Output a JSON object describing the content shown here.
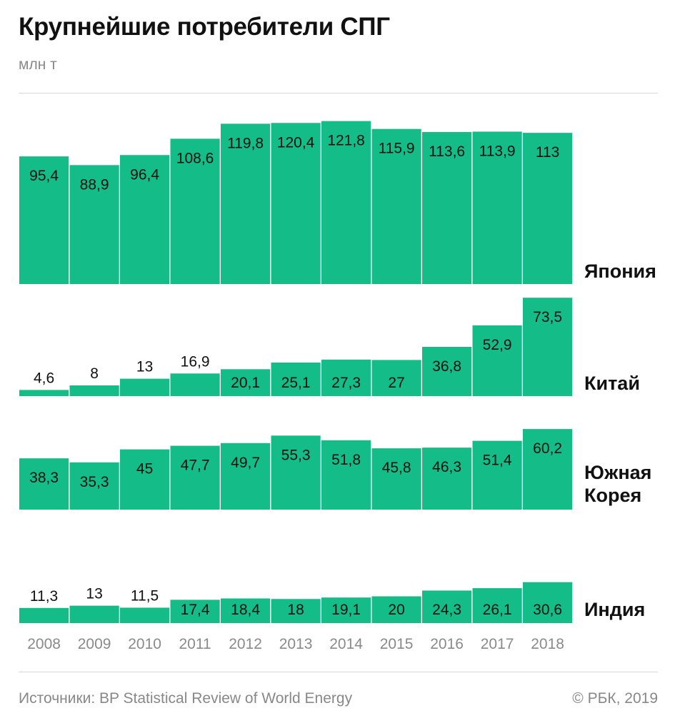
{
  "title": "Крупнейшие потребители СПГ",
  "unit": "млн т",
  "source": "Источники: BP Statistical Review of World Energy",
  "copyright": "© РБК, 2019",
  "colors": {
    "bar": "#14bd87",
    "text": "#111111",
    "axis": "#8a8a8a"
  },
  "chart_data": {
    "type": "bar",
    "categories": [
      "2008",
      "2009",
      "2010",
      "2011",
      "2012",
      "2013",
      "2014",
      "2015",
      "2016",
      "2017",
      "2018"
    ],
    "series": [
      {
        "name": "Япония",
        "values": [
          95.4,
          88.9,
          96.4,
          108.6,
          119.8,
          120.4,
          121.8,
          115.9,
          113.6,
          113.9,
          113
        ],
        "labels": [
          "95,4",
          "88,9",
          "96,4",
          "108,6",
          "119,8",
          "120,4",
          "121,8",
          "115,9",
          "113,6",
          "113,9",
          "113"
        ]
      },
      {
        "name": "Китай",
        "values": [
          4.6,
          8,
          13,
          16.9,
          20.1,
          25.1,
          27.3,
          27,
          36.8,
          52.9,
          73.5
        ],
        "labels": [
          "4,6",
          "8",
          "13",
          "16,9",
          "20,1",
          "25,1",
          "27,3",
          "27",
          "36,8",
          "52,9",
          "73,5"
        ]
      },
      {
        "name": "Южная Корея",
        "values": [
          38.3,
          35.3,
          45,
          47.7,
          49.7,
          55.3,
          51.8,
          45.8,
          46.3,
          51.4,
          60.2
        ],
        "labels": [
          "38,3",
          "35,3",
          "45",
          "47,7",
          "49,7",
          "55,3",
          "51,8",
          "45,8",
          "46,3",
          "51,4",
          "60,2"
        ]
      },
      {
        "name": "Индия",
        "values": [
          11.3,
          13,
          11.5,
          17.4,
          18.4,
          18,
          19.1,
          20,
          24.3,
          26.1,
          30.6
        ],
        "labels": [
          "11,3",
          "13",
          "11,5",
          "17,4",
          "18,4",
          "18",
          "19,1",
          "20",
          "24,3",
          "26,1",
          "30,6"
        ]
      }
    ]
  }
}
